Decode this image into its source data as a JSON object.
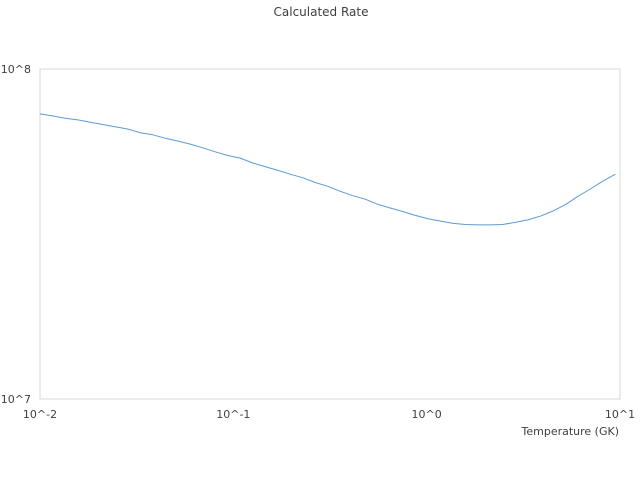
{
  "chart_data": {
    "type": "line",
    "title": "Calculated Rate",
    "xlabel": "Temperature (GK)",
    "ylabel": "",
    "x_scale": "log",
    "y_scale": "log",
    "xlim": [
      0.01,
      10
    ],
    "ylim": [
      10000000,
      100000000
    ],
    "x_ticks": [
      0.01,
      0.1,
      1,
      10
    ],
    "x_tick_labels": [
      "10^-2",
      "10^-1",
      "10^0",
      "10^1"
    ],
    "y_ticks": [
      10000000,
      100000000
    ],
    "y_tick_labels": [
      "10^7",
      "10^8"
    ],
    "grid": false,
    "legend": "none",
    "series": [
      {
        "color": "#5b9bd5",
        "x": [
          0.01,
          0.0116,
          0.0135,
          0.0157,
          0.0182,
          0.0211,
          0.0245,
          0.0284,
          0.033,
          0.0383,
          0.0444,
          0.0515,
          0.0598,
          0.0694,
          0.0806,
          0.0935,
          0.1085,
          0.126,
          0.146,
          0.17,
          0.197,
          0.229,
          0.265,
          0.308,
          0.357,
          0.415,
          0.481,
          0.558,
          0.648,
          0.752,
          0.873,
          1.01,
          1.18,
          1.36,
          1.58,
          1.84,
          2.13,
          2.47,
          2.87,
          3.33,
          3.87,
          4.49,
          5.21,
          6.05,
          7.02,
          8.14,
          9.45
        ],
        "y": [
          73100000,
          72100000,
          70900000,
          70100000,
          69000000,
          67900000,
          66800000,
          65800000,
          64100000,
          63200000,
          61700000,
          60500000,
          59200000,
          57700000,
          56100000,
          54700000,
          53700000,
          51900000,
          50600000,
          49300000,
          48000000,
          46800000,
          45300000,
          44100000,
          42600000,
          41300000,
          40300000,
          38900000,
          37900000,
          37000000,
          36000000,
          35200000,
          34600000,
          34100000,
          33800000,
          33700000,
          33700000,
          33800000,
          34300000,
          34900000,
          35800000,
          37100000,
          38800000,
          41100000,
          43300000,
          45700000,
          48000000
        ]
      }
    ]
  }
}
